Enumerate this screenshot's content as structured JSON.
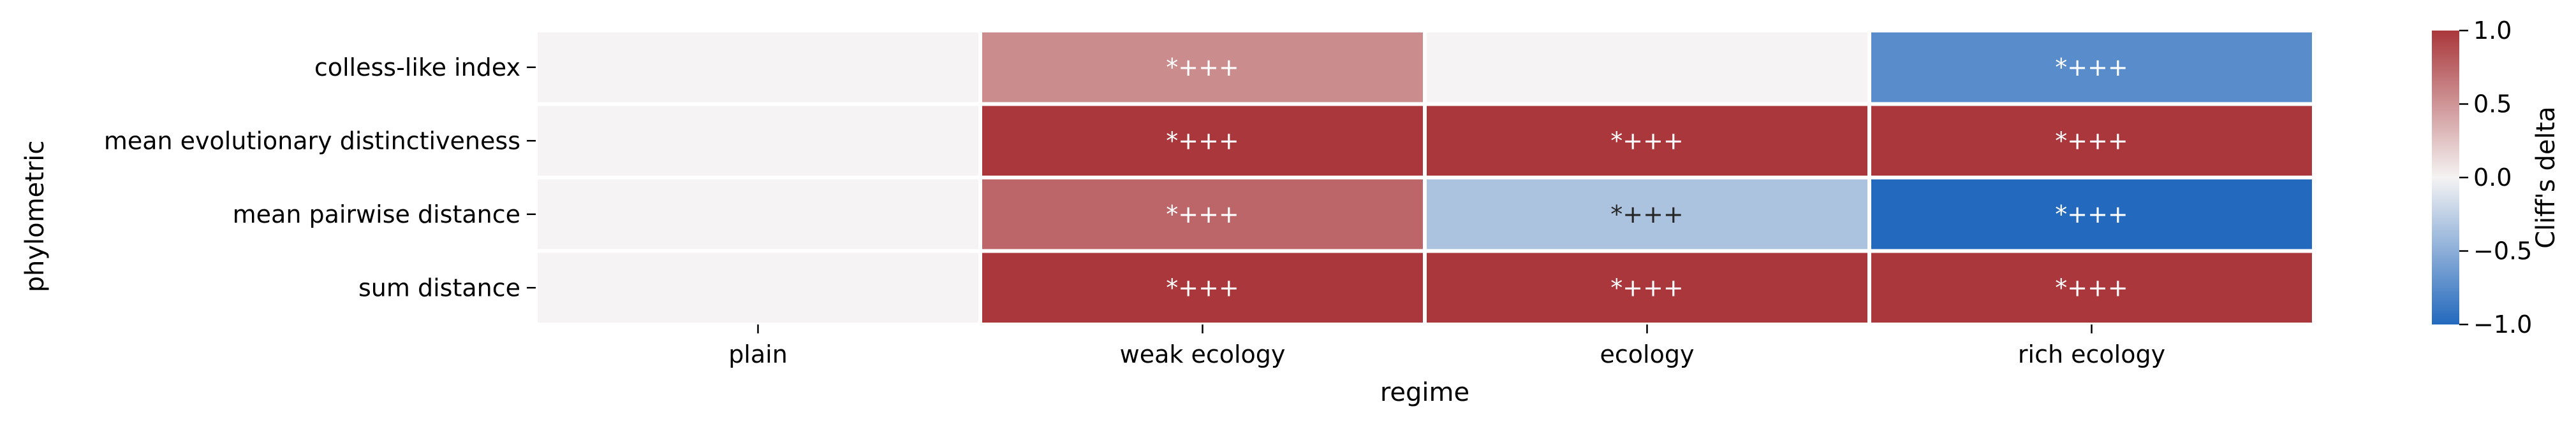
{
  "chart_data": {
    "type": "heatmap",
    "title": "",
    "xlabel": "regime",
    "ylabel": "phylometric",
    "x_categories": [
      "plain",
      "weak ecology",
      "ecology",
      "rich ecology"
    ],
    "y_categories": [
      "colless-like index",
      "mean evolutionary distinctiveness",
      "mean pairwise distance",
      "sum distance"
    ],
    "values": [
      [
        0.0,
        0.55,
        0.0,
        -0.75
      ],
      [
        0.0,
        1.0,
        1.0,
        1.0
      ],
      [
        0.0,
        0.75,
        -0.35,
        -1.0
      ],
      [
        0.0,
        1.0,
        1.0,
        1.0
      ]
    ],
    "annotations": [
      [
        "",
        "*+++",
        "",
        "*+++"
      ],
      [
        "",
        "*+++",
        "*+++",
        "*+++"
      ],
      [
        "",
        "*+++",
        "*+++",
        "*+++"
      ],
      [
        "",
        "*+++",
        "*+++",
        "*+++"
      ]
    ],
    "colorbar": {
      "label": "Cliff's delta",
      "vmin": -1.0,
      "vmax": 1.0,
      "ticks": [
        1.0,
        0.5,
        0.0,
        -0.5,
        -1.0
      ],
      "tick_labels": [
        "1.0",
        "0.5",
        "0.0",
        "−0.5",
        "−1.0"
      ],
      "colormap": "vlag",
      "low_color": "#2369bd",
      "mid_color": "#f5f3f3",
      "high_color": "#a9373b"
    },
    "grid": false,
    "legend": "colorbar-right"
  }
}
